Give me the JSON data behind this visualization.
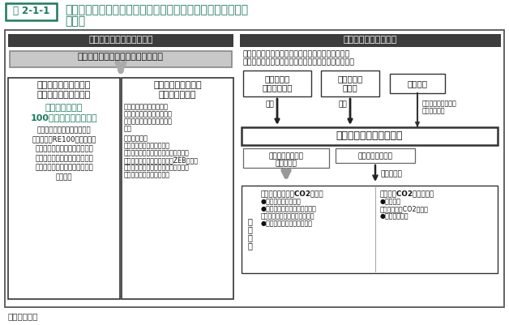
{
  "bg": "#ffffff",
  "title_label": "図 2-1-1",
  "title_main_line1": "地域脱炭素ロードマップに基づく継続的・包括的資金支援の",
  "title_main_line2": "全体像",
  "title_color": "#1a7a5e",
  "dark_bar": "#3d3d3d",
  "left_header": "地方自治体の取組への支援",
  "right_header": "民間資金の活用の促進",
  "grant_text": "地域脱炭素移行・再エネ推進交付金",
  "b1_title_line1": "脱炭素先行地域づくり",
  "b1_title_line2": "に取り組む地方自治体",
  "b1_green_line1": "脱炭素先行地域",
  "b1_green_line2": "100以上のプロジェクト",
  "b1_body": "地域の特性に応じて、いわば\n地域主導のRE100とも言える\n取組である「脱炭素先行地域」\nをつくることにより、地方創生\nにも貢献する多様なプロジェク\nトを選定",
  "b2_title_line1": "重点対策を加速的に",
  "b2_title_line2": "行う地方自治体",
  "b2_body_line1": "地域が掲げた目標に対し",
  "b2_body_line2": "て、以下の重点対策を複数",
  "b2_body_line3": "年度にわたり複合的に行う",
  "b2_body_line4": "取組",
  "b2_body_line5": "",
  "b2_body_line6": "＜重点対策＞",
  "b2_body_line7": "・自家消費型の太陽光発電",
  "b2_body_line8": "・地域共生・地域循環型再エネの立地",
  "b2_body_line9": "・業務ビル等の徹底省エネ・ZEB化誘導",
  "b2_body_line10": "・住宅・建築物の省エネ性能等の向上",
  "b2_body_line11": "・ゼロカーボン・ドライブ",
  "right_desc_line1": "脱炭素化に資する事業に対する資金供給等の支援を",
  "right_desc_line2": "強化することにより、民間投資の一層の誘発を図る。",
  "zaish_line1": "財政投融資",
  "zaish_line2": "（産業投資）",
  "kiny_line1": "金融機関・",
  "kiny_line2": "企業等",
  "kancho": "環境大臣",
  "shushi": "出資",
  "nintei_line1": "各種認可、監督命令",
  "nintei_line2": "支援基準策定",
  "org": "（株）脱炭素化支援機構",
  "mezanin_line1": "出資・メザニン・",
  "mezanin_line2": "債務保証等",
  "kiny2": "金融機関・企業等",
  "yushi": "出資・融資",
  "toshi_line1": "投",
  "toshi_line2": "資",
  "toshi_line3": "分",
  "toshi_line4": "野",
  "e_title": "【エネルギー起源CO2削減】",
  "e_item1": "●再エネ・省エネ設備",
  "e_item2": "●再エネ・省エネ設備とその他",
  "e_item3": "　の設備を一体で導入する事業",
  "e_item4": "●普及拡大段階の大規模事業",
  "ne_title": "【エネ起CO2削減以外】",
  "ne_item1": "●資源循環",
  "ne_item2": "（廃棄物焼却CO2削減）",
  "ne_item3": "●森林吸収対策",
  "source": "資料：環境省"
}
